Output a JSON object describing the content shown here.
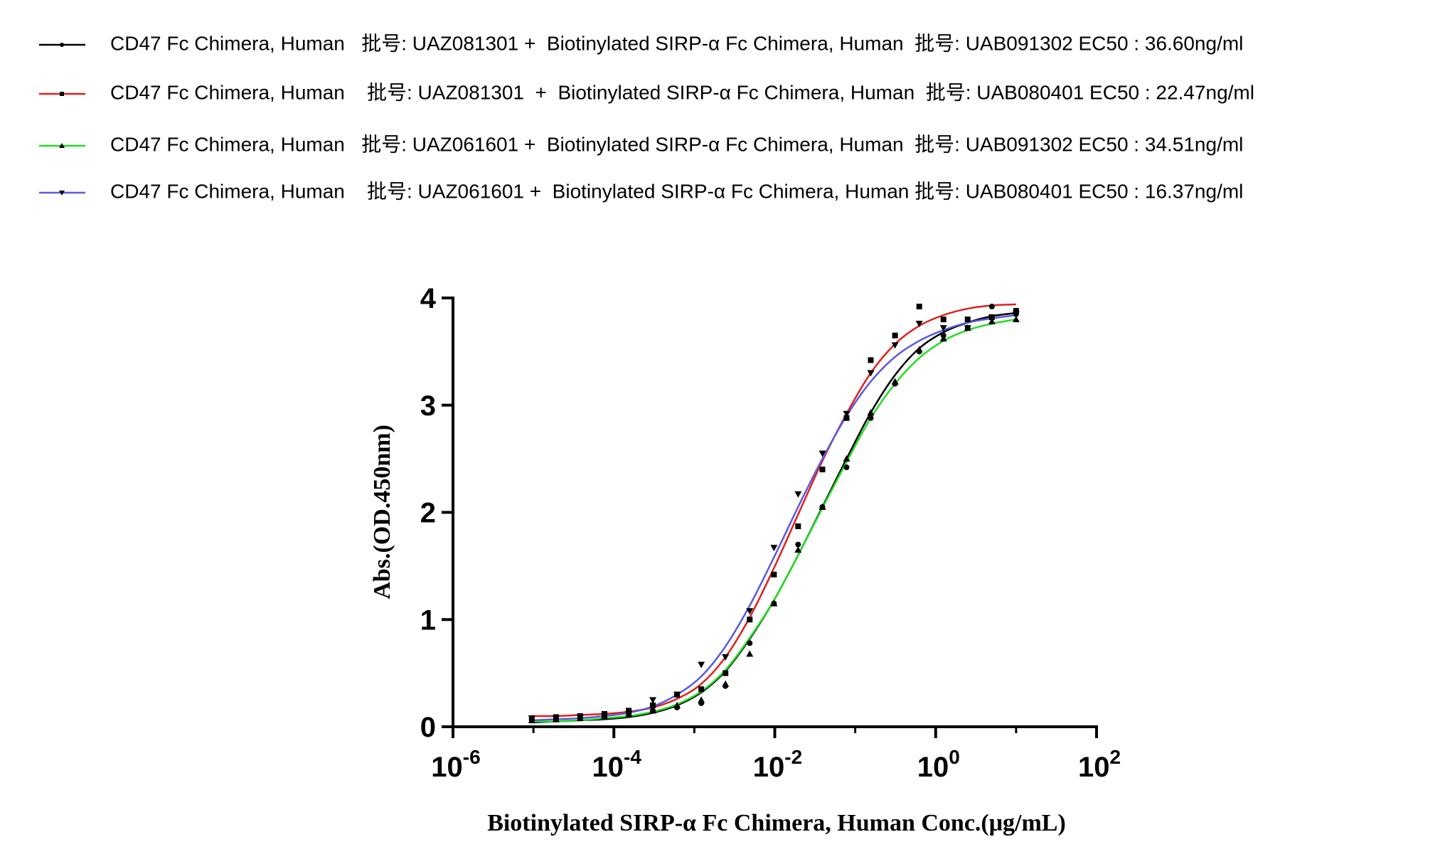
{
  "chart_data": {
    "type": "dose-response",
    "xlabel": "Biotinylated SIRP-α Fc Chimera, Human Conc.(μg/mL)",
    "ylabel": "Abs.(OD.450nm)",
    "xscale": "log",
    "xlim": [
      1e-06,
      100
    ],
    "ylim": [
      0,
      4
    ],
    "xticks": [
      {
        "value": 1e-06,
        "label": "10",
        "exponent": "-6"
      },
      {
        "value": 0.0001,
        "label": "10",
        "exponent": "-4"
      },
      {
        "value": 0.01,
        "label": "10",
        "exponent": "-2"
      },
      {
        "value": 1,
        "label": "10",
        "exponent": "0"
      },
      {
        "value": 100,
        "label": "10",
        "exponent": "2"
      }
    ],
    "xminor_ticks": [
      1e-05,
      0.001,
      0.1,
      10
    ],
    "yticks": [
      0,
      1,
      2,
      3,
      4
    ],
    "legend": "top-left",
    "x": [
      9.54e-06,
      1.91e-05,
      3.81e-05,
      7.63e-05,
      0.000153,
      0.000305,
      0.00061,
      0.00122,
      0.00244,
      0.00488,
      0.00977,
      0.0195,
      0.0391,
      0.0781,
      0.156,
      0.3125,
      0.625,
      1.25,
      2.5,
      5,
      10
    ],
    "series": [
      {
        "name": "CD47 Fc Chimera, Human   批号: UAZ081301 +  Biotinylated SIRP-α Fc Chimera, Human  批号: UAB091302 EC50 : 36.60ng/ml",
        "color": "#000000",
        "marker": "circle",
        "values": [
          0.08,
          0.07,
          0.08,
          0.1,
          0.12,
          0.15,
          0.18,
          0.22,
          0.38,
          0.78,
          1.15,
          1.7,
          2.05,
          2.42,
          2.88,
          3.2,
          3.5,
          3.65,
          3.72,
          3.92,
          3.85
        ],
        "fit_values": [
          0.04,
          0.05,
          0.06,
          0.07,
          0.09,
          0.13,
          0.2,
          0.32,
          0.52,
          0.82,
          1.18,
          1.6,
          2.05,
          2.5,
          2.93,
          3.28,
          3.53,
          3.68,
          3.77,
          3.83,
          3.86
        ]
      },
      {
        "name": "CD47 Fc Chimera, Human    批号: UAZ081301  +  Biotinylated SIRP-α Fc Chimera, Human  批号: UAB080401 EC50 : 22.47ng/ml",
        "color": "#e0201b",
        "marker": "square",
        "values": [
          0.08,
          0.09,
          0.1,
          0.12,
          0.15,
          0.2,
          0.3,
          0.35,
          0.5,
          1.0,
          1.42,
          1.87,
          2.4,
          2.88,
          3.42,
          3.65,
          3.92,
          3.8,
          3.8,
          3.82,
          3.88
        ],
        "fit_values": [
          0.1,
          0.1,
          0.11,
          0.12,
          0.14,
          0.18,
          0.26,
          0.4,
          0.65,
          1.02,
          1.48,
          1.98,
          2.48,
          2.92,
          3.3,
          3.57,
          3.74,
          3.84,
          3.9,
          3.93,
          3.94
        ]
      },
      {
        "name": "CD47 Fc Chimera, Human   批号: UAZ061601 +  Biotinylated SIRP-α Fc Chimera, Human  批号: UAB091302 EC50 : 34.51ng/ml",
        "color": "#22dd22",
        "marker": "triangle-up",
        "values": [
          0.06,
          0.07,
          0.08,
          0.1,
          0.12,
          0.15,
          0.2,
          0.25,
          0.4,
          0.68,
          1.15,
          1.65,
          2.05,
          2.5,
          2.93,
          3.22,
          3.52,
          3.62,
          3.72,
          3.78,
          3.8
        ],
        "fit_values": [
          0.05,
          0.05,
          0.06,
          0.08,
          0.1,
          0.14,
          0.21,
          0.33,
          0.53,
          0.83,
          1.18,
          1.6,
          2.04,
          2.47,
          2.88,
          3.2,
          3.44,
          3.6,
          3.7,
          3.76,
          3.8
        ]
      },
      {
        "name": "CD47 Fc Chimera, Human    批号: UAZ061601 +  Biotinylated SIRP-α Fc Chimera, Human 批号: UAB080401 EC50 : 16.37ng/ml",
        "color": "#5a5ae0",
        "marker": "triangle-down",
        "values": [
          0.08,
          0.08,
          0.09,
          0.1,
          0.12,
          0.25,
          0.3,
          0.58,
          0.65,
          1.08,
          1.67,
          2.17,
          2.55,
          2.92,
          3.3,
          3.56,
          3.76,
          3.72,
          3.72,
          3.82,
          3.85
        ],
        "fit_values": [
          0.06,
          0.07,
          0.08,
          0.1,
          0.13,
          0.19,
          0.3,
          0.47,
          0.75,
          1.13,
          1.58,
          2.05,
          2.5,
          2.9,
          3.22,
          3.45,
          3.6,
          3.7,
          3.77,
          3.81,
          3.84
        ]
      }
    ]
  }
}
